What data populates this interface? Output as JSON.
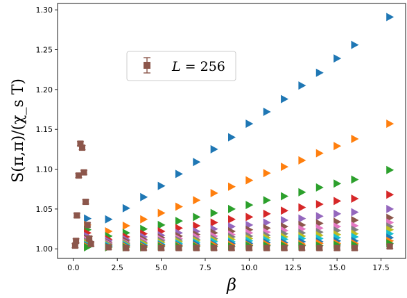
{
  "chart_data": {
    "type": "scatter",
    "xlabel": "β",
    "ylabel": "S(π,π)/(χ_s T)",
    "xlim": [
      -0.9,
      18.9
    ],
    "ylim": [
      0.988,
      1.308
    ],
    "xticks": [
      0.0,
      2.5,
      5.0,
      7.5,
      10.0,
      12.5,
      15.0,
      17.5
    ],
    "xtick_labels": [
      "0.0",
      "2.5",
      "5.0",
      "7.5",
      "10.0",
      "12.5",
      "15.0",
      "17.5"
    ],
    "yticks": [
      1.0,
      1.05,
      1.1,
      1.15,
      1.2,
      1.25,
      1.3
    ],
    "ytick_labels": [
      "1.00",
      "1.05",
      "1.10",
      "1.15",
      "1.20",
      "1.25",
      "1.30"
    ],
    "legend": {
      "label": "L = 256",
      "label_italic": "L",
      "label_rest": " = 256",
      "position": "upper-left"
    },
    "triangle_series": [
      {
        "color": "#1f77b4",
        "x": [
          0.8,
          2,
          3,
          4,
          5,
          6,
          7,
          8,
          9,
          10,
          11,
          12,
          13,
          14,
          15,
          16,
          18
        ],
        "y": [
          1.038,
          1.037,
          1.051,
          1.065,
          1.079,
          1.094,
          1.109,
          1.125,
          1.14,
          1.157,
          1.172,
          1.188,
          1.205,
          1.221,
          1.239,
          1.256,
          1.291
        ]
      },
      {
        "color": "#ff7f0e",
        "x": [
          0.8,
          2,
          3,
          4,
          5,
          6,
          7,
          8,
          9,
          10,
          11,
          12,
          13,
          14,
          15,
          16,
          18
        ],
        "y": [
          1.03,
          1.022,
          1.029,
          1.037,
          1.045,
          1.053,
          1.061,
          1.07,
          1.078,
          1.086,
          1.095,
          1.103,
          1.111,
          1.12,
          1.129,
          1.138,
          1.157
        ]
      },
      {
        "color": "#2ca02c",
        "x": [
          0.8,
          2,
          3,
          4,
          5,
          6,
          7,
          8,
          9,
          10,
          11,
          12,
          13,
          14,
          15,
          16,
          18
        ],
        "y": [
          1.024,
          1.016,
          1.02,
          1.025,
          1.03,
          1.035,
          1.04,
          1.045,
          1.05,
          1.055,
          1.061,
          1.066,
          1.071,
          1.077,
          1.082,
          1.087,
          1.099
        ]
      },
      {
        "color": "#d62728",
        "x": [
          0.8,
          2,
          3,
          4,
          5,
          6,
          7,
          8,
          9,
          10,
          11,
          12,
          13,
          14,
          15,
          16,
          18
        ],
        "y": [
          1.02,
          1.012,
          1.015,
          1.019,
          1.022,
          1.026,
          1.029,
          1.033,
          1.037,
          1.04,
          1.044,
          1.048,
          1.052,
          1.056,
          1.06,
          1.063,
          1.068
        ]
      },
      {
        "color": "#9467bd",
        "x": [
          0.8,
          2,
          3,
          4,
          5,
          6,
          7,
          8,
          9,
          10,
          11,
          12,
          13,
          14,
          15,
          16,
          18
        ],
        "y": [
          1.016,
          1.01,
          1.012,
          1.015,
          1.017,
          1.02,
          1.022,
          1.025,
          1.028,
          1.03,
          1.033,
          1.036,
          1.038,
          1.041,
          1.044,
          1.046,
          1.05
        ]
      },
      {
        "color": "#8c564b",
        "x": [
          0.8,
          2,
          3,
          4,
          5,
          6,
          7,
          8,
          9,
          10,
          11,
          12,
          13,
          14,
          15,
          16,
          18
        ],
        "y": [
          1.013,
          1.008,
          1.01,
          1.012,
          1.014,
          1.016,
          1.018,
          1.02,
          1.022,
          1.024,
          1.026,
          1.028,
          1.03,
          1.032,
          1.034,
          1.036,
          1.039
        ]
      },
      {
        "color": "#e377c2",
        "x": [
          0.8,
          2,
          3,
          4,
          5,
          6,
          7,
          8,
          9,
          10,
          11,
          12,
          13,
          14,
          15,
          16,
          18
        ],
        "y": [
          1.011,
          1.007,
          1.008,
          1.01,
          1.012,
          1.013,
          1.015,
          1.016,
          1.018,
          1.02,
          1.021,
          1.023,
          1.025,
          1.026,
          1.028,
          1.029,
          1.033
        ]
      },
      {
        "color": "#7f7f7f",
        "x": [
          0.8,
          2,
          3,
          4,
          5,
          6,
          7,
          8,
          9,
          10,
          11,
          12,
          13,
          14,
          15,
          16,
          18
        ],
        "y": [
          1.009,
          1.006,
          1.007,
          1.008,
          1.01,
          1.011,
          1.012,
          1.013,
          1.015,
          1.016,
          1.017,
          1.019,
          1.02,
          1.021,
          1.023,
          1.024,
          1.028
        ]
      },
      {
        "color": "#bcbd22",
        "x": [
          0.8,
          2,
          3,
          4,
          5,
          6,
          7,
          8,
          9,
          10,
          11,
          12,
          13,
          14,
          15,
          16,
          18
        ],
        "y": [
          1.007,
          1.005,
          1.006,
          1.007,
          1.008,
          1.009,
          1.01,
          1.011,
          1.012,
          1.013,
          1.014,
          1.015,
          1.016,
          1.017,
          1.018,
          1.019,
          1.024
        ]
      },
      {
        "color": "#17becf",
        "x": [
          0.8,
          2,
          3,
          4,
          5,
          6,
          7,
          8,
          9,
          10,
          11,
          12,
          13,
          14,
          15,
          16,
          18
        ],
        "y": [
          1.005,
          1.004,
          1.005,
          1.005,
          1.006,
          1.007,
          1.008,
          1.009,
          1.009,
          1.01,
          1.011,
          1.012,
          1.013,
          1.013,
          1.014,
          1.015,
          1.019
        ]
      },
      {
        "color": "#1f77b4",
        "x": [
          0.8,
          2,
          3,
          4,
          5,
          6,
          7,
          8,
          9,
          10,
          11,
          12,
          13,
          14,
          15,
          16,
          18
        ],
        "y": [
          1.004,
          1.003,
          1.004,
          1.004,
          1.005,
          1.005,
          1.006,
          1.006,
          1.007,
          1.007,
          1.008,
          1.008,
          1.009,
          1.009,
          1.01,
          1.01,
          1.014
        ]
      },
      {
        "color": "#ff7f0e",
        "x": [
          0.8,
          2,
          3,
          4,
          5,
          6,
          7,
          8,
          9,
          10,
          11,
          12,
          13,
          14,
          15,
          16,
          18
        ],
        "y": [
          1.003,
          1.002,
          1.003,
          1.003,
          1.004,
          1.004,
          1.004,
          1.005,
          1.005,
          1.005,
          1.006,
          1.006,
          1.006,
          1.007,
          1.007,
          1.007,
          1.01
        ]
      },
      {
        "color": "#2ca02c",
        "x": [
          0.8,
          2,
          3,
          4,
          5,
          6,
          7,
          8,
          9,
          10,
          11,
          12,
          13,
          14,
          15,
          16,
          18
        ],
        "y": [
          1.002,
          1.002,
          1.002,
          1.002,
          1.003,
          1.003,
          1.003,
          1.003,
          1.003,
          1.004,
          1.004,
          1.004,
          1.004,
          1.004,
          1.005,
          1.005,
          1.007
        ]
      }
    ],
    "square_series": {
      "name": "L = 256",
      "color": "#8c564b",
      "x": [
        0.1,
        0.15,
        0.2,
        0.3,
        0.4,
        0.5,
        0.6,
        0.7,
        0.8,
        0.9,
        1.0,
        2,
        3,
        4,
        5,
        6,
        7,
        8,
        9,
        10,
        11,
        12,
        13,
        14,
        15,
        16,
        18
      ],
      "y": [
        1.004,
        1.01,
        1.042,
        1.092,
        1.132,
        1.127,
        1.096,
        1.059,
        1.03,
        1.013,
        1.006,
        1.002,
        1.001,
        1.001,
        1.001,
        1.001,
        1.001,
        1.001,
        1.001,
        1.001,
        1.001,
        1.001,
        1.001,
        1.001,
        1.001,
        1.001,
        1.003
      ]
    }
  }
}
